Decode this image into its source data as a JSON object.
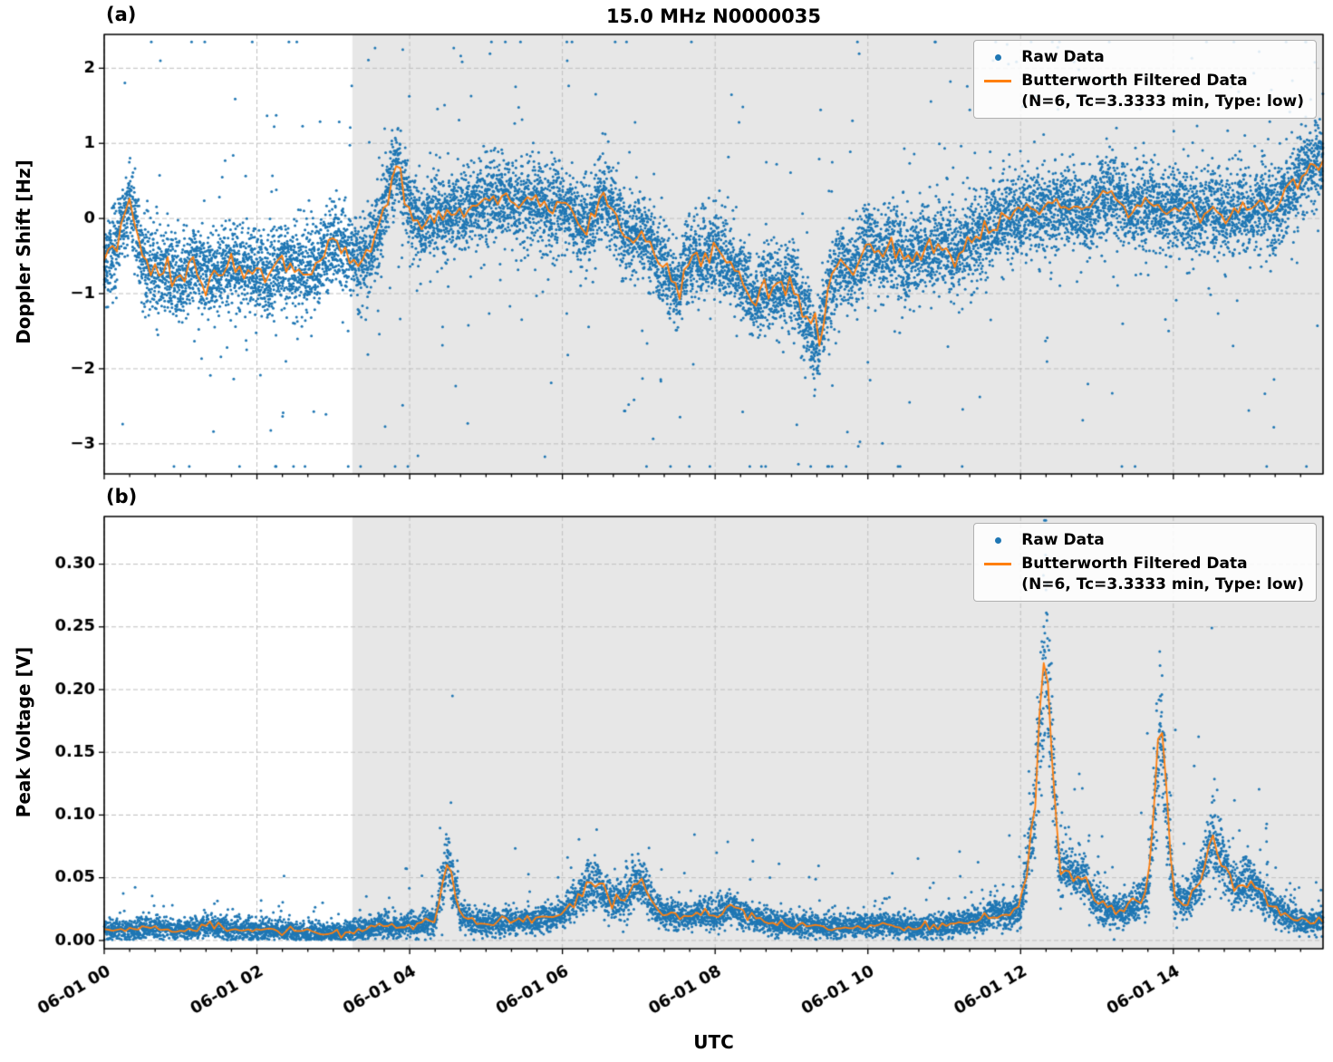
{
  "figure": {
    "title": "15.0 MHz N0000035",
    "panel_a_label": "(a)",
    "panel_b_label": "(b)",
    "xlabel": "UTC",
    "colors": {
      "raw": "#1f77b4",
      "filtered": "#ff7f0e",
      "shade": "#e7e7e7",
      "grid": "#bfbfbf",
      "text": "#000000"
    }
  },
  "legend": {
    "raw_label": "Raw Data",
    "filtered_label": "Butterworth Filtered Data",
    "filtered_sublabel": "(N=6, Tc=3.3333 min, Type: low)"
  },
  "chart_data": [
    {
      "type": "scatter",
      "panel": "a",
      "title": "15.0 MHz N0000035",
      "ylabel": "Doppler Shift [Hz]",
      "xlabel": "",
      "ylim": [
        -3.4,
        2.45
      ],
      "yticks": [
        2,
        1,
        0,
        -1,
        -2,
        -3
      ],
      "ytick_labels": [
        "2",
        "1",
        "0",
        "−1",
        "−2",
        "−3"
      ],
      "xlim_hours": [
        0,
        15.96
      ],
      "xticks_hours": [
        0,
        2,
        4,
        6,
        8,
        10,
        12,
        14
      ],
      "xtick_labels": [
        "06-01 00",
        "06-01 02",
        "06-01 04",
        "06-01 06",
        "06-01 08",
        "06-01 10",
        "06-01 12",
        "06-01 14"
      ],
      "shade_span_hours": [
        3.25,
        15.96
      ],
      "grid": true,
      "legend_position": "upper right",
      "series": [
        {
          "name": "Raw Data",
          "type": "scatter",
          "color": "#1f77b4",
          "marker_size_px": 3,
          "noise": {
            "seed": 20240601,
            "n_points": 12000,
            "std_base": 0.28,
            "std_rel": 0.0,
            "outlier_prob": 0.04,
            "outlier_base": 0.7,
            "outlier_rel": 0.3,
            "outlier_abs": false,
            "clamp": [
              -3.3,
              2.35
            ],
            "positive": false
          }
        },
        {
          "name": "Butterworth Filtered Data (N=6, Tc=3.3333 min, Type: low)",
          "type": "line",
          "color": "#ff7f0e",
          "x_start_hour": 0,
          "x_step_hours": 0.16666667,
          "jitter_base": 0.06,
          "jitter_rel": 0.05,
          "values": [
            -0.6,
            -0.3,
            0.25,
            -0.5,
            -0.75,
            -0.7,
            -0.8,
            -0.65,
            -0.75,
            -0.7,
            -0.55,
            -0.65,
            -0.7,
            -0.75,
            -0.6,
            -0.7,
            -0.65,
            -0.55,
            -0.3,
            -0.45,
            -0.6,
            -0.4,
            0.1,
            0.75,
            0.1,
            -0.1,
            0.05,
            0.0,
            0.1,
            0.2,
            0.25,
            0.3,
            0.2,
            0.15,
            0.25,
            0.1,
            0.2,
            0.0,
            -0.2,
            0.3,
            0.1,
            -0.3,
            -0.15,
            -0.4,
            -0.7,
            -1.0,
            -0.5,
            -0.6,
            -0.4,
            -0.55,
            -0.8,
            -1.1,
            -0.85,
            -0.95,
            -0.8,
            -1.3,
            -1.7,
            -0.9,
            -0.6,
            -0.7,
            -0.3,
            -0.5,
            -0.4,
            -0.6,
            -0.5,
            -0.4,
            -0.35,
            -0.5,
            -0.3,
            -0.2,
            -0.1,
            0.05,
            0.1,
            0.15,
            0.1,
            0.2,
            0.15,
            0.1,
            0.2,
            0.35,
            0.15,
            0.1,
            0.2,
            0.1,
            0.15,
            0.1,
            0.05,
            0.15,
            0.0,
            0.1,
            0.05,
            0.2,
            0.1,
            0.3,
            0.6,
            0.75
          ]
        }
      ]
    },
    {
      "type": "scatter",
      "panel": "b",
      "title": "",
      "ylabel": "Peak Voltage [V]",
      "xlabel": "UTC",
      "ylim": [
        -0.0066,
        0.338
      ],
      "yticks": [
        0.0,
        0.05,
        0.1,
        0.15,
        0.2,
        0.25,
        0.3
      ],
      "ytick_labels": [
        "0.00",
        "0.05",
        "0.10",
        "0.15",
        "0.20",
        "0.25",
        "0.30"
      ],
      "xlim_hours": [
        0,
        15.96
      ],
      "xticks_hours": [
        0,
        2,
        4,
        6,
        8,
        10,
        12,
        14
      ],
      "xtick_labels": [
        "06-01 00",
        "06-01 02",
        "06-01 04",
        "06-01 06",
        "06-01 08",
        "06-01 10",
        "06-01 12",
        "06-01 14"
      ],
      "shade_span_hours": [
        3.25,
        15.96
      ],
      "grid": true,
      "legend_position": "upper right",
      "series": [
        {
          "name": "Raw Data",
          "type": "scatter",
          "color": "#1f77b4",
          "marker_size_px": 3,
          "noise": {
            "seed": 771155,
            "n_points": 9000,
            "std_base": 0.003,
            "std_rel": 0.15,
            "outlier_prob": 0.03,
            "outlier_base": 0.003,
            "outlier_rel": 0.6,
            "outlier_abs": true,
            "clamp": [
              0.0005,
              0.335
            ],
            "positive": true
          }
        },
        {
          "name": "Butterworth Filtered Data (N=6, Tc=3.3333 min, Type: low)",
          "type": "line",
          "color": "#ff7f0e",
          "x_start_hour": 0,
          "x_step_hours": 0.16666667,
          "jitter_base": 0.001,
          "jitter_rel": 0.06,
          "values": [
            0.008,
            0.009,
            0.008,
            0.009,
            0.01,
            0.009,
            0.008,
            0.009,
            0.012,
            0.01,
            0.009,
            0.008,
            0.008,
            0.009,
            0.008,
            0.007,
            0.007,
            0.006,
            0.006,
            0.007,
            0.008,
            0.01,
            0.012,
            0.011,
            0.012,
            0.013,
            0.015,
            0.065,
            0.02,
            0.015,
            0.014,
            0.015,
            0.016,
            0.015,
            0.017,
            0.018,
            0.02,
            0.03,
            0.045,
            0.04,
            0.03,
            0.035,
            0.048,
            0.03,
            0.022,
            0.02,
            0.018,
            0.022,
            0.02,
            0.028,
            0.022,
            0.018,
            0.015,
            0.014,
            0.012,
            0.013,
            0.012,
            0.011,
            0.012,
            0.011,
            0.012,
            0.013,
            0.012,
            0.011,
            0.01,
            0.011,
            0.012,
            0.013,
            0.015,
            0.018,
            0.022,
            0.02,
            0.025,
            0.09,
            0.24,
            0.06,
            0.055,
            0.05,
            0.03,
            0.025,
            0.022,
            0.03,
            0.04,
            0.17,
            0.035,
            0.03,
            0.045,
            0.08,
            0.06,
            0.04,
            0.05,
            0.035,
            0.025,
            0.02,
            0.015,
            0.015
          ]
        }
      ]
    }
  ]
}
